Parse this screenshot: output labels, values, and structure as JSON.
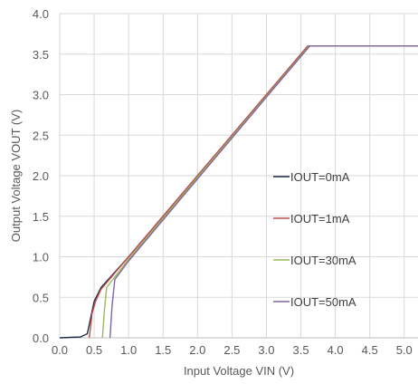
{
  "chart_data": {
    "type": "line",
    "title": "",
    "xlabel": "Input Voltage VIN (V)",
    "ylabel": "Output Voltage VOUT (V)",
    "xlim": [
      0,
      5.2
    ],
    "ylim": [
      0,
      4.0
    ],
    "x_ticks": [
      "0.0",
      "0.5",
      "1.0",
      "1.5",
      "2.0",
      "2.5",
      "3.0",
      "3.5",
      "4.0",
      "4.5",
      "5.0"
    ],
    "y_ticks": [
      "0.0",
      "0.5",
      "1.0",
      "1.5",
      "2.0",
      "2.5",
      "3.0",
      "3.5",
      "4.0"
    ],
    "grid": true,
    "legend_position": "right-middle",
    "series": [
      {
        "name": "IOUT=0mA",
        "color": "#1f2a44",
        "points": [
          [
            0,
            0
          ],
          [
            0.3,
            0.01
          ],
          [
            0.4,
            0.05
          ],
          [
            0.45,
            0.25
          ],
          [
            0.5,
            0.45
          ],
          [
            0.6,
            0.62
          ],
          [
            1.0,
            1.0
          ],
          [
            2.0,
            2.0
          ],
          [
            3.0,
            3.0
          ],
          [
            3.6,
            3.6
          ],
          [
            5.2,
            3.6
          ]
        ]
      },
      {
        "name": "IOUT=1mA",
        "color": "#c0504d",
        "points": [
          [
            0.43,
            0
          ],
          [
            0.47,
            0.3
          ],
          [
            0.52,
            0.45
          ],
          [
            0.6,
            0.6
          ],
          [
            1.0,
            1.0
          ],
          [
            2.0,
            2.0
          ],
          [
            3.0,
            3.0
          ],
          [
            3.6,
            3.6
          ],
          [
            5.2,
            3.6
          ]
        ]
      },
      {
        "name": "IOUT=30mA",
        "color": "#9bbb59",
        "points": [
          [
            0.62,
            0
          ],
          [
            0.65,
            0.35
          ],
          [
            0.68,
            0.62
          ],
          [
            1.0,
            0.97
          ],
          [
            2.0,
            1.98
          ],
          [
            3.0,
            2.98
          ],
          [
            3.62,
            3.6
          ],
          [
            5.2,
            3.6
          ]
        ]
      },
      {
        "name": "IOUT=50mA",
        "color": "#8064a2",
        "points": [
          [
            0.73,
            0
          ],
          [
            0.76,
            0.4
          ],
          [
            0.8,
            0.72
          ],
          [
            1.0,
            0.95
          ],
          [
            2.0,
            1.96
          ],
          [
            3.0,
            2.97
          ],
          [
            3.63,
            3.6
          ],
          [
            5.2,
            3.6
          ]
        ]
      }
    ]
  }
}
